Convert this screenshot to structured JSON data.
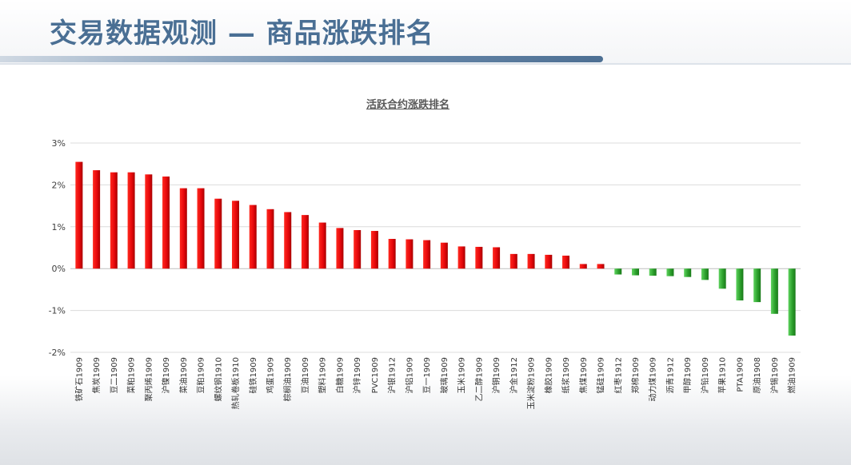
{
  "page": {
    "title": "交易数据观测 — 商品涨跌排名"
  },
  "chart_data": {
    "type": "bar",
    "title": "活跃合约涨跌排名",
    "xlabel": "",
    "ylabel": "",
    "ylim": [
      -2,
      3
    ],
    "yticks": [
      "3%",
      "2%",
      "1%",
      "0%",
      "-1%",
      "-2%"
    ],
    "grid": true,
    "legend": "none",
    "colors": {
      "positive": "#e8080c",
      "negative": "#2ca02c"
    },
    "categories": [
      "铁矿石1909",
      "焦炭1909",
      "豆二1909",
      "菜粕1909",
      "聚丙烯1909",
      "沪镍1909",
      "菜油1909",
      "豆粕1909",
      "螺纹钢1910",
      "热轧卷板1910",
      "硅铁1909",
      "鸡蛋1909",
      "棕榈油1909",
      "豆油1909",
      "塑料1909",
      "白糖1909",
      "沪锌1909",
      "PVC1909",
      "沪银1912",
      "沪铝1909",
      "豆一1909",
      "玻璃1909",
      "玉米1909",
      "乙二醇1909",
      "沪铜1909",
      "沪金1912",
      "玉米淀粉1909",
      "橡胶1909",
      "纸浆1909",
      "焦煤1909",
      "锰硅1909",
      "红枣1912",
      "郑棉1909",
      "动力煤1909",
      "沥青1912",
      "甲醇1909",
      "沪铅1909",
      "苹果1910",
      "PTA1909",
      "原油1908",
      "沪锡1909",
      "燃油1909"
    ],
    "values": [
      2.55,
      2.35,
      2.3,
      2.3,
      2.25,
      2.2,
      1.92,
      1.92,
      1.67,
      1.62,
      1.52,
      1.42,
      1.35,
      1.28,
      1.1,
      0.97,
      0.92,
      0.9,
      0.71,
      0.7,
      0.68,
      0.62,
      0.53,
      0.52,
      0.51,
      0.35,
      0.35,
      0.33,
      0.31,
      0.11,
      0.11,
      -0.14,
      -0.16,
      -0.17,
      -0.18,
      -0.2,
      -0.27,
      -0.48,
      -0.76,
      -0.8,
      -1.08,
      -1.6
    ]
  }
}
